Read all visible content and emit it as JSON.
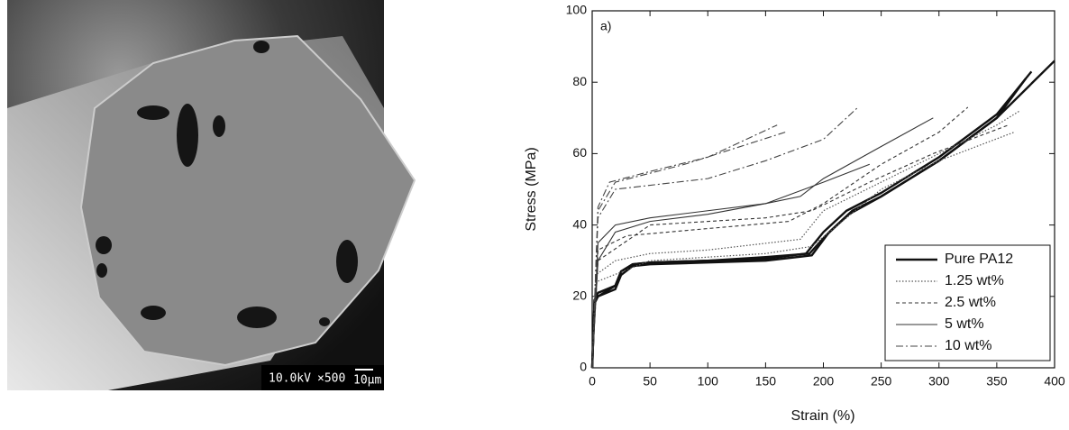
{
  "sem_image": {
    "voltage": "10.0kV",
    "magnification": "×500",
    "scale_bar": "10μm"
  },
  "chart_data": {
    "type": "line",
    "annotation": "a)",
    "xlabel": "Strain (%)",
    "ylabel": "Stress (MPa)",
    "xlim": [
      0,
      400
    ],
    "xticks": [
      0,
      50,
      100,
      150,
      200,
      250,
      300,
      350,
      400
    ],
    "ylim": [
      0,
      100
    ],
    "yticks": [
      0,
      20,
      40,
      60,
      80,
      100
    ],
    "legend": "lower-right",
    "series": [
      {
        "name": "Pure PA12",
        "color": "#111111",
        "line_style": "solid-thick",
        "curves": [
          {
            "x": [
              0,
              2,
              5,
              20,
              25,
              35,
              50,
              100,
              150,
              185,
              200,
              220,
              250,
              300,
              350,
              380
            ],
            "values": [
              0,
              19,
              20,
              23,
              27,
              29,
              29.5,
              30,
              30.5,
              32,
              38,
              44,
              49,
              59,
              71,
              83
            ]
          },
          {
            "x": [
              0,
              2,
              5,
              20,
              25,
              35,
              50,
              100,
              150,
              190,
              205,
              225,
              250,
              300,
              350,
              375
            ],
            "values": [
              0,
              18,
              20,
              22,
              26,
              28.5,
              29,
              29.5,
              30,
              31.5,
              38,
              44,
              48,
              58,
              70,
              81
            ]
          },
          {
            "x": [
              0,
              2,
              5,
              20,
              25,
              35,
              50,
              100,
              150,
              188,
              202,
              222,
              250,
              300,
              350,
              400
            ],
            "values": [
              0,
              19,
              21,
              23,
              27,
              29,
              29.5,
              30,
              31,
              32,
              37,
              43,
              48,
              58,
              70,
              86
            ]
          }
        ]
      },
      {
        "name": "1.25 wt%",
        "color": "#555555",
        "line_style": "dotted",
        "curves": [
          {
            "x": [
              0,
              3,
              20,
              50,
              100,
              180,
              200,
              250,
              300,
              350,
              370
            ],
            "values": [
              0,
              26,
              30,
              32,
              33,
              36,
              44,
              52,
              60,
              68,
              72
            ]
          },
          {
            "x": [
              0,
              3,
              50,
              150,
              190,
              250,
              300,
              365
            ],
            "values": [
              0,
              24,
              30,
              32,
              34,
              50,
              58,
              66
            ]
          }
        ]
      },
      {
        "name": "2.5 wt%",
        "color": "#333333",
        "line_style": "dashed",
        "curves": [
          {
            "x": [
              0,
              5,
              30,
              100,
              170,
              200,
              250,
              300,
              325
            ],
            "values": [
              0,
              33,
              37,
              39,
              41,
              46,
              57,
              66,
              73
            ]
          },
          {
            "x": [
              0,
              5,
              50,
              150,
              190,
              240,
              295,
              360
            ],
            "values": [
              0,
              30,
              40,
              42,
              44,
              52,
              60,
              68
            ]
          }
        ]
      },
      {
        "name": "5 wt%",
        "color": "#333333",
        "line_style": "solid",
        "curves": [
          {
            "x": [
              0,
              5,
              20,
              50,
              100,
              150,
              180,
              200,
              250,
              295
            ],
            "values": [
              0,
              35,
              40,
              42,
              44,
              46,
              48,
              53,
              62,
              70
            ]
          },
          {
            "x": [
              0,
              5,
              20,
              50,
              100,
              150,
              200,
              240
            ],
            "values": [
              0,
              30,
              38,
              41,
              43,
              46,
              52,
              57
            ]
          }
        ]
      },
      {
        "name": "10 wt%",
        "color": "#444444",
        "line_style": "dash-dot",
        "curves": [
          {
            "x": [
              0,
              5,
              15,
              50,
              100,
              160
            ],
            "values": [
              0,
              45,
              52,
              55,
              59,
              68
            ]
          },
          {
            "x": [
              0,
              5,
              20,
              100,
              150,
              200,
              230
            ],
            "values": [
              0,
              42,
              50,
              53,
              58,
              64,
              73
            ]
          },
          {
            "x": [
              0,
              5,
              20,
              80,
              167
            ],
            "values": [
              0,
              44,
              52,
              57,
              66
            ]
          }
        ]
      }
    ]
  }
}
